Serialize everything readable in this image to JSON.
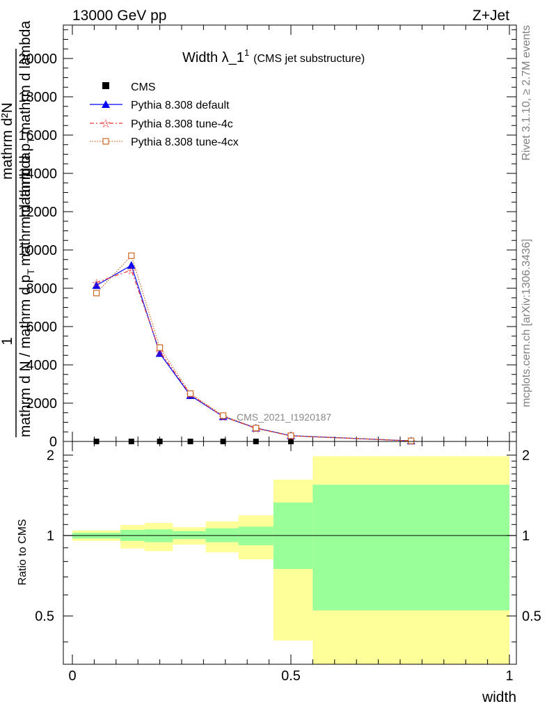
{
  "header": {
    "left": "13000 GeV pp",
    "right": "Z+Jet"
  },
  "side_labels": {
    "rivet": "Rivet 3.1.10, ≥ 2.7M events",
    "mcplots": "mcplots.cern.ch [arXiv:1306.3436]"
  },
  "main_plot": {
    "title_main": "Width λ_1",
    "title_sup": "1",
    "title_note": "(CMS jet substructure)",
    "ylabel_numerator": "1",
    "ylabel_line_a": "mathrm d N / mathrm d p",
    "ylabel_line_a_sub": "T",
    "ylabel_line_b": "mathrm d²N",
    "ylabel_line_c": "mathrm d p",
    "ylabel_line_c_sub": "T",
    "ylabel_line_c_rest": "mathrm d lambda",
    "ylabel_line_d": "mathrm d N / mathrm d p",
    "ylabel_line_d_sub": "T",
    "ylabel_line_d_rest": "mathrm d lambda",
    "analysis_label": "CMS_2021_I1920187"
  },
  "ratio_plot": {
    "ylabel": "Ratio to CMS"
  },
  "colors": {
    "default": "#0000ff",
    "tune4c": "#ee3333",
    "tune4cx": "#cc6622",
    "band_inner": "#99ff99",
    "band_outer": "#ffff99"
  },
  "chart_data": {
    "type": "line",
    "x_label": "width",
    "main": {
      "xlim": [
        0,
        1
      ],
      "ylim": [
        0,
        22000
      ],
      "y_ticks": [
        0,
        2000,
        4000,
        6000,
        8000,
        10000,
        12000,
        14000,
        16000,
        18000,
        20000
      ],
      "series": [
        {
          "name": "CMS",
          "marker": "square",
          "x": [
            0.055,
            0.135,
            0.2,
            0.27,
            0.345,
            0.42,
            0.5,
            0.775
          ],
          "y": [
            0,
            0,
            0,
            0,
            0,
            0,
            0,
            0
          ]
        },
        {
          "name": "Pythia 8.308 default",
          "marker": "triangle",
          "x": [
            0.055,
            0.135,
            0.2,
            0.27,
            0.345,
            0.42,
            0.5,
            0.775
          ],
          "y": [
            8150,
            9200,
            4600,
            2400,
            1300,
            700,
            300,
            30
          ]
        },
        {
          "name": "Pythia 8.308 tune-4c",
          "marker": "star",
          "x": [
            0.055,
            0.135,
            0.2,
            0.27,
            0.345,
            0.42,
            0.5,
            0.775
          ],
          "y": [
            8300,
            8950,
            4700,
            2450,
            1300,
            680,
            290,
            30
          ]
        },
        {
          "name": "Pythia 8.308 tune-4cx",
          "marker": "open-square",
          "x": [
            0.055,
            0.135,
            0.2,
            0.27,
            0.345,
            0.42,
            0.5,
            0.775
          ],
          "y": [
            7750,
            9700,
            4900,
            2500,
            1350,
            700,
            300,
            30
          ]
        }
      ]
    },
    "ratio": {
      "ylim": [
        0.33,
        2.25
      ],
      "y_ticks": [
        0.5,
        1,
        2
      ],
      "reference": 1,
      "bands": [
        {
          "x0": 0.0,
          "x1": 0.11,
          "inner": [
            0.975,
            1.025
          ],
          "outer": [
            0.955,
            1.045
          ]
        },
        {
          "x0": 0.11,
          "x1": 0.165,
          "inner": [
            0.955,
            1.05
          ],
          "outer": [
            0.895,
            1.095
          ]
        },
        {
          "x0": 0.165,
          "x1": 0.23,
          "inner": [
            0.945,
            1.055
          ],
          "outer": [
            0.875,
            1.115
          ]
        },
        {
          "x0": 0.23,
          "x1": 0.305,
          "inner": [
            0.97,
            1.04
          ],
          "outer": [
            0.925,
            1.075
          ]
        },
        {
          "x0": 0.305,
          "x1": 0.38,
          "inner": [
            0.945,
            1.065
          ],
          "outer": [
            0.865,
            1.13
          ]
        },
        {
          "x0": 0.38,
          "x1": 0.46,
          "inner": [
            0.92,
            1.08
          ],
          "outer": [
            0.815,
            1.19
          ]
        },
        {
          "x0": 0.46,
          "x1": 0.55,
          "inner": [
            0.75,
            1.33
          ],
          "outer": [
            0.405,
            1.62
          ]
        },
        {
          "x0": 0.55,
          "x1": 1.0,
          "inner": [
            0.525,
            1.55
          ],
          "outer": [
            0.0,
            1.98
          ]
        }
      ]
    },
    "x_ticks": [
      0,
      0.5,
      1
    ]
  }
}
